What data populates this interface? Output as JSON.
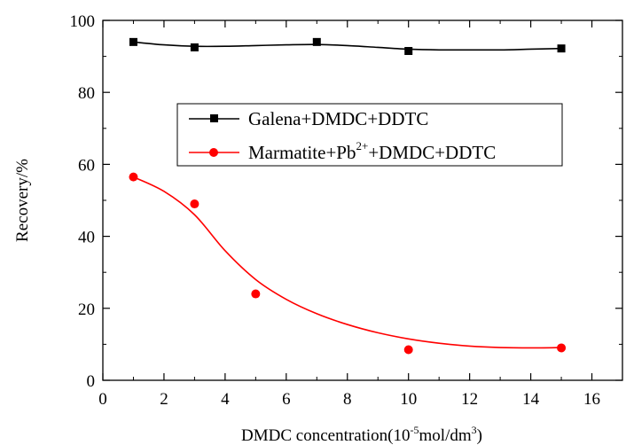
{
  "chart_data": {
    "type": "scatter",
    "xlabel": "DMDC concentration(10",
    "xlabel_sup": "-5",
    "xlabel_mid": "mol/dm",
    "xlabel_sup2": "3",
    "xlabel_end": ")",
    "ylabel": "Recovery/%",
    "xlim": [
      0,
      17
    ],
    "ylim": [
      0,
      100
    ],
    "xticks": [
      0,
      2,
      4,
      6,
      8,
      10,
      12,
      14,
      16
    ],
    "yticks": [
      0,
      20,
      40,
      60,
      80,
      100
    ],
    "legend_position": "center",
    "series": [
      {
        "name": "Galena+DMDC+DDTC",
        "color": "#000000",
        "marker": "square",
        "x": [
          1,
          3,
          7,
          10,
          15
        ],
        "y": [
          94,
          92.5,
          94,
          91.5,
          92.2
        ],
        "curve": [
          [
            1,
            94
          ],
          [
            2,
            93.2
          ],
          [
            3,
            92.8
          ],
          [
            4,
            92.8
          ],
          [
            5,
            93.0
          ],
          [
            6,
            93.2
          ],
          [
            7,
            93.3
          ],
          [
            8,
            93.0
          ],
          [
            9,
            92.5
          ],
          [
            10,
            92.0
          ],
          [
            11,
            91.8
          ],
          [
            12,
            91.8
          ],
          [
            13,
            91.8
          ],
          [
            14,
            92.0
          ],
          [
            15,
            92.2
          ]
        ]
      },
      {
        "name_main": "Marmatite+Pb",
        "name_sup": "2+",
        "name_end": "+DMDC+DDTC",
        "color": "#ff0000",
        "marker": "circle",
        "x": [
          1,
          3,
          5,
          10,
          15
        ],
        "y": [
          56.5,
          49,
          24,
          8.5,
          9
        ],
        "curve": [
          [
            1,
            56.5
          ],
          [
            2,
            52.5
          ],
          [
            3,
            46
          ],
          [
            4,
            36
          ],
          [
            5,
            28
          ],
          [
            6,
            22.5
          ],
          [
            7,
            18.5
          ],
          [
            8,
            15.5
          ],
          [
            9,
            13.2
          ],
          [
            10,
            11.5
          ],
          [
            11,
            10.3
          ],
          [
            12,
            9.5
          ],
          [
            13,
            9.1
          ],
          [
            14,
            9.0
          ],
          [
            15,
            9.1
          ]
        ]
      }
    ]
  }
}
